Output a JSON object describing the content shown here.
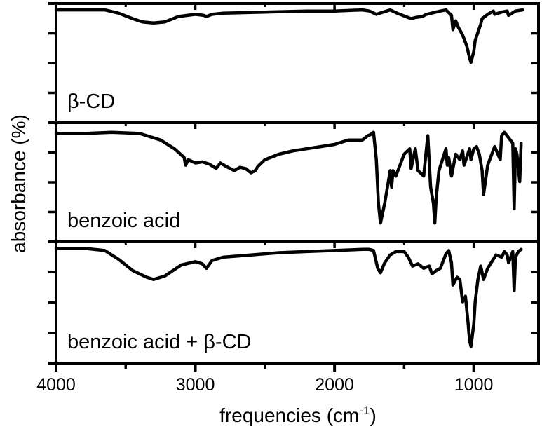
{
  "chart_data": {
    "type": "line",
    "title": "",
    "xlabel": "frequencies (cm-1)",
    "xlabel_parts": {
      "main": "frequencies (cm",
      "superscript": "-1",
      "close": ")"
    },
    "ylabel": "absorbance (%)",
    "xlim": [
      4000,
      535
    ],
    "x_reversed": true,
    "x_ticks": [
      4000,
      3000,
      2000,
      1000
    ],
    "x_tick_labels": [
      "4000",
      "3000",
      "2000",
      "1000"
    ],
    "x_minor_ticks": [
      3500,
      2500,
      1500,
      500
    ],
    "y_tick_labels": [],
    "grid": false,
    "legend": null,
    "layout": "3 vertically stacked panels sharing x-axis",
    "panels": [
      {
        "name": "beta-CD",
        "label": "β-CD",
        "note": "y values: 0 = panel top (baseline), 1 = panel bottom; deeper = stronger absorption band",
        "x": [
          4000,
          3800,
          3650,
          3550,
          3450,
          3380,
          3300,
          3220,
          3120,
          3000,
          2940,
          2920,
          2880,
          2800,
          2500,
          2200,
          2000,
          1800,
          1750,
          1700,
          1650,
          1600,
          1550,
          1450,
          1420,
          1370,
          1340,
          1240,
          1200,
          1160,
          1150,
          1130,
          1110,
          1080,
          1050,
          1030,
          1020,
          1000,
          990,
          950,
          940,
          900,
          860,
          850,
          800,
          760,
          750,
          700,
          650
        ],
        "values": [
          0.02,
          0.02,
          0.02,
          0.05,
          0.1,
          0.13,
          0.14,
          0.13,
          0.08,
          0.06,
          0.07,
          0.08,
          0.06,
          0.05,
          0.04,
          0.03,
          0.03,
          0.02,
          0.03,
          0.06,
          0.04,
          0.02,
          0.05,
          0.1,
          0.09,
          0.08,
          0.06,
          0.03,
          0.02,
          0.07,
          0.2,
          0.12,
          0.18,
          0.25,
          0.35,
          0.46,
          0.5,
          0.4,
          0.3,
          0.15,
          0.1,
          0.06,
          0.03,
          0.06,
          0.04,
          0.03,
          0.07,
          0.03,
          0.02
        ]
      },
      {
        "name": "benzoic-acid",
        "label": "benzoic acid",
        "x": [
          4000,
          3800,
          3600,
          3400,
          3250,
          3150,
          3080,
          3070,
          3050,
          3000,
          2950,
          2900,
          2850,
          2820,
          2780,
          2720,
          2680,
          2640,
          2600,
          2570,
          2550,
          2500,
          2400,
          2300,
          2200,
          2100,
          2000,
          1900,
          1800,
          1760,
          1740,
          1720,
          1700,
          1685,
          1670,
          1640,
          1600,
          1590,
          1580,
          1560,
          1500,
          1460,
          1450,
          1420,
          1400,
          1360,
          1330,
          1310,
          1290,
          1280,
          1270,
          1250,
          1200,
          1190,
          1180,
          1160,
          1130,
          1100,
          1080,
          1070,
          1030,
          1020,
          1000,
          980,
          960,
          940,
          930,
          900,
          850,
          810,
          800,
          780,
          720,
          710,
          700,
          690,
          670,
          660
        ],
        "values": [
          0.06,
          0.06,
          0.05,
          0.06,
          0.12,
          0.2,
          0.28,
          0.35,
          0.3,
          0.33,
          0.32,
          0.34,
          0.38,
          0.33,
          0.36,
          0.4,
          0.37,
          0.38,
          0.42,
          0.4,
          0.36,
          0.3,
          0.25,
          0.22,
          0.2,
          0.18,
          0.16,
          0.12,
          0.12,
          0.08,
          0.07,
          0.05,
          0.3,
          0.7,
          0.88,
          0.7,
          0.4,
          0.55,
          0.4,
          0.45,
          0.25,
          0.2,
          0.38,
          0.2,
          0.4,
          0.45,
          0.08,
          0.55,
          0.7,
          0.88,
          0.65,
          0.4,
          0.2,
          0.35,
          0.28,
          0.45,
          0.25,
          0.3,
          0.22,
          0.35,
          0.2,
          0.3,
          0.2,
          0.18,
          0.25,
          0.4,
          0.62,
          0.35,
          0.18,
          0.3,
          0.08,
          0.05,
          0.15,
          0.75,
          0.2,
          0.25,
          0.5,
          0.15
        ]
      },
      {
        "name": "benzoic-acid-plus-beta-cd",
        "label": "benzoic acid + β-CD",
        "x": [
          4000,
          3800,
          3650,
          3550,
          3450,
          3350,
          3300,
          3220,
          3100,
          3000,
          2950,
          2920,
          2880,
          2800,
          2600,
          2400,
          2200,
          2000,
          1800,
          1750,
          1720,
          1690,
          1670,
          1640,
          1600,
          1560,
          1500,
          1470,
          1440,
          1400,
          1360,
          1320,
          1300,
          1270,
          1240,
          1200,
          1180,
          1160,
          1150,
          1120,
          1100,
          1080,
          1060,
          1040,
          1030,
          1020,
          1000,
          990,
          970,
          950,
          930,
          900,
          860,
          840,
          800,
          780,
          760,
          750,
          720,
          710,
          700,
          680,
          660
        ],
        "values": [
          0.02,
          0.02,
          0.04,
          0.12,
          0.22,
          0.28,
          0.3,
          0.27,
          0.17,
          0.14,
          0.16,
          0.2,
          0.13,
          0.1,
          0.08,
          0.06,
          0.05,
          0.04,
          0.03,
          0.03,
          0.04,
          0.2,
          0.24,
          0.15,
          0.08,
          0.05,
          0.05,
          0.1,
          0.18,
          0.16,
          0.2,
          0.18,
          0.25,
          0.22,
          0.2,
          0.07,
          0.04,
          0.15,
          0.35,
          0.28,
          0.3,
          0.5,
          0.45,
          0.7,
          0.85,
          0.9,
          0.7,
          0.5,
          0.3,
          0.18,
          0.3,
          0.2,
          0.12,
          0.08,
          0.1,
          0.05,
          0.08,
          0.15,
          0.05,
          0.4,
          0.1,
          0.05,
          0.03
        ]
      }
    ]
  }
}
